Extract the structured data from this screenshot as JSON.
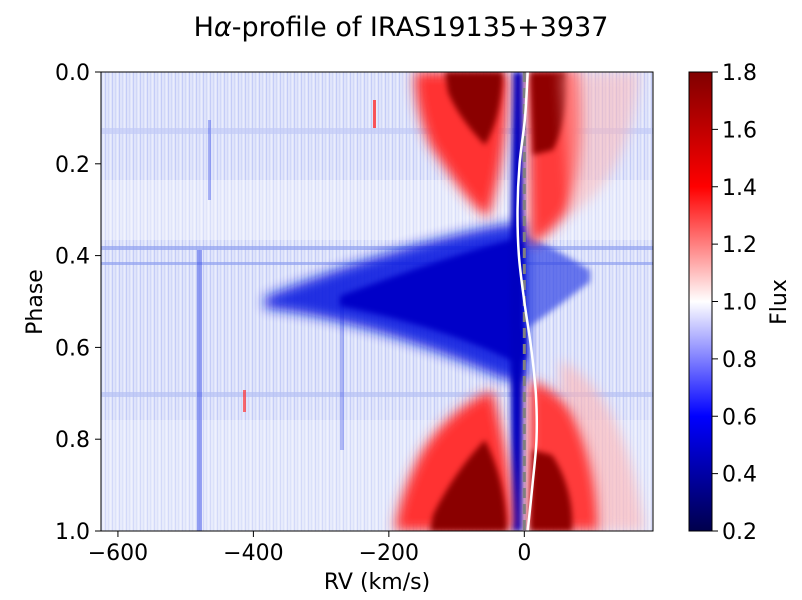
{
  "chart_data": {
    "type": "heatmap",
    "title": "Hα-profile of IRAS19135+3937",
    "title_parts": {
      "prefix": "H",
      "symbol": "α",
      "suffix": "-profile of IRAS19135+3937"
    },
    "xlabel": "RV (km/s)",
    "ylabel": "Phase",
    "xlim": [
      -625,
      190
    ],
    "ylim": [
      1.0,
      0.0
    ],
    "x_ticks": [
      {
        "value": -600,
        "label": "−600"
      },
      {
        "value": -400,
        "label": "−400"
      },
      {
        "value": -200,
        "label": "−200"
      },
      {
        "value": 0,
        "label": "0"
      }
    ],
    "y_ticks": [
      {
        "value": 0.0,
        "label": "0.0"
      },
      {
        "value": 0.2,
        "label": "0.2"
      },
      {
        "value": 0.4,
        "label": "0.4"
      },
      {
        "value": 0.6,
        "label": "0.6"
      },
      {
        "value": 0.8,
        "label": "0.8"
      },
      {
        "value": 1.0,
        "label": "1.0"
      }
    ],
    "colorbar": {
      "label": "Flux",
      "colormap": "seismic",
      "range": [
        0.2,
        1.8
      ],
      "ticks": [
        {
          "value": 0.2,
          "label": "0.2"
        },
        {
          "value": 0.4,
          "label": "0.4"
        },
        {
          "value": 0.6,
          "label": "0.6"
        },
        {
          "value": 0.8,
          "label": "0.8"
        },
        {
          "value": 1.0,
          "label": "1.0"
        },
        {
          "value": 1.2,
          "label": "1.2"
        },
        {
          "value": 1.4,
          "label": "1.4"
        },
        {
          "value": 1.6,
          "label": "1.6"
        },
        {
          "value": 1.8,
          "label": "1.8"
        }
      ]
    },
    "overlays": {
      "rv_curve": {
        "color": "#ffffff",
        "style": "solid",
        "description": "orbital radial-velocity curve",
        "points": [
          [
            0.0,
            5
          ],
          [
            0.1,
            1
          ],
          [
            0.2,
            -7
          ],
          [
            0.3,
            -10
          ],
          [
            0.4,
            -8
          ],
          [
            0.5,
            0
          ],
          [
            0.6,
            10
          ],
          [
            0.7,
            17
          ],
          [
            0.8,
            18
          ],
          [
            0.9,
            12
          ],
          [
            1.0,
            5
          ]
        ]
      },
      "systemic_line": {
        "color": "#808080",
        "style": "dashed",
        "x": 0
      }
    },
    "features": [
      {
        "name": "blue emission lobe",
        "x_range": [
          -150,
          -20
        ],
        "phase_ranges": [
          [
            0.0,
            0.25
          ],
          [
            0.75,
            1.0
          ]
        ],
        "peak_flux": 1.8
      },
      {
        "name": "red emission lobe",
        "x_range": [
          10,
          80
        ],
        "phase_ranges": [
          [
            0.0,
            0.3
          ],
          [
            0.7,
            1.0
          ]
        ],
        "peak_flux": 1.8
      },
      {
        "name": "absorption wing",
        "x_range": [
          -330,
          0
        ],
        "phase_range": [
          0.35,
          0.65
        ],
        "min_flux": 0.3
      },
      {
        "name": "absorption core",
        "x_range": [
          -10,
          5
        ],
        "phase_range": [
          0.0,
          1.0
        ],
        "min_flux": 0.3
      }
    ]
  }
}
